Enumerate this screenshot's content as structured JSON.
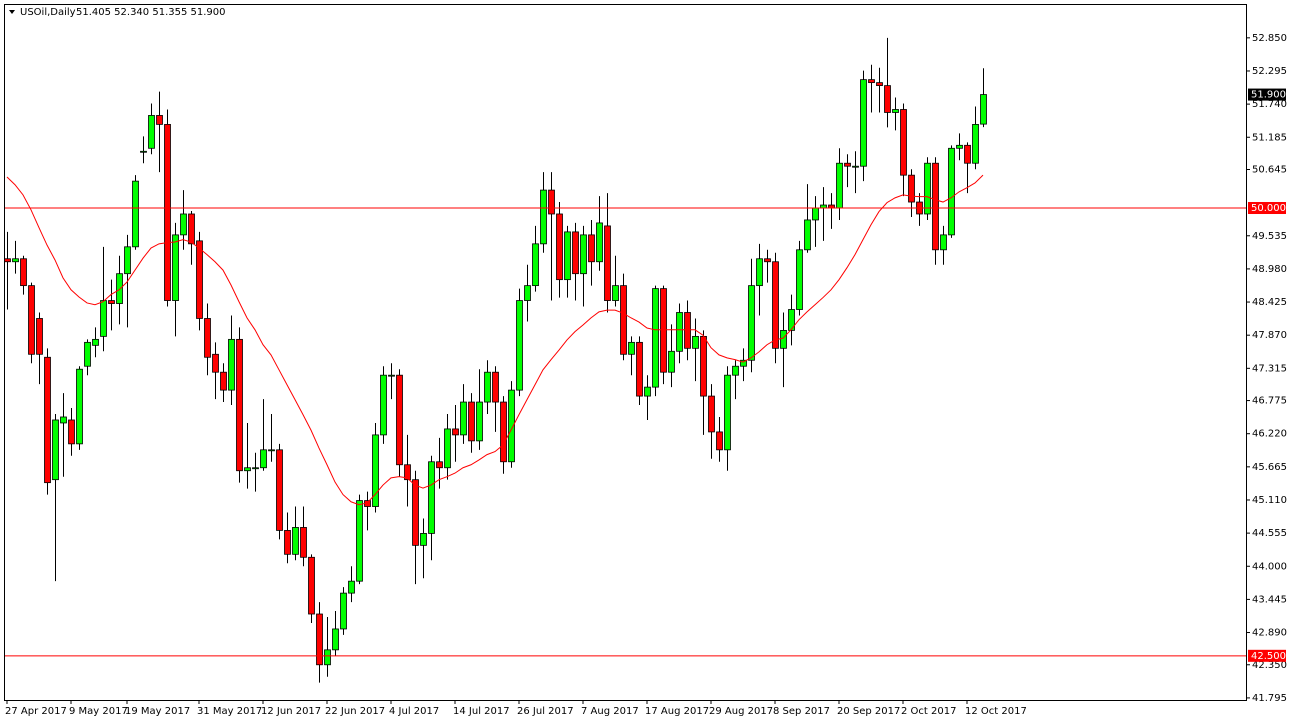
{
  "chart_data": {
    "type": "candlestick",
    "title": "USOil,Daily",
    "quote": "51.405 52.340 51.355 51.900",
    "categories": [
      "27 Apr 2017",
      null,
      null,
      null,
      null,
      null,
      null,
      null,
      "9 May 2017",
      null,
      null,
      null,
      null,
      null,
      null,
      "19 May 2017",
      null,
      null,
      null,
      null,
      null,
      null,
      null,
      null,
      "31 May 2017",
      null,
      null,
      null,
      null,
      null,
      null,
      null,
      "12 Jun 2017",
      null,
      null,
      null,
      null,
      null,
      null,
      null,
      "22 Jun 2017",
      null,
      null,
      null,
      null,
      null,
      null,
      null,
      "4 Jul 2017",
      null,
      null,
      null,
      null,
      null,
      null,
      null,
      "14 Jul 2017",
      null,
      null,
      null,
      null,
      null,
      null,
      null,
      "26 Jul 2017",
      null,
      null,
      null,
      null,
      null,
      null,
      null,
      "7 Aug 2017",
      null,
      null,
      null,
      null,
      null,
      null,
      null,
      "17 Aug 2017",
      null,
      null,
      null,
      null,
      null,
      null,
      null,
      "29 Aug 2017",
      null,
      null,
      null,
      null,
      null,
      null,
      null,
      "8 Sep 2017",
      null,
      null,
      null,
      null,
      null,
      null,
      null,
      "20 Sep 2017",
      null,
      null,
      null,
      null,
      null,
      null,
      null,
      "2 Oct 2017",
      null,
      null,
      null,
      null,
      null,
      null,
      null,
      "12 Oct 2017",
      null,
      null
    ],
    "open": [
      49.15,
      49.1,
      49.15,
      48.7,
      48.15,
      47.5,
      45.45,
      46.4,
      46.45,
      46.05,
      47.35,
      47.7,
      47.85,
      48.45,
      48.4,
      48.9,
      49.35,
      50.95,
      51.0,
      51.55,
      51.4,
      48.45,
      49.55,
      49.9,
      49.45,
      48.15,
      47.55,
      47.25,
      46.95,
      47.8,
      45.6,
      45.65,
      45.65,
      45.95,
      45.95,
      44.6,
      44.2,
      44.65,
      44.15,
      43.2,
      42.35,
      42.6,
      42.95,
      43.55,
      43.75,
      45.1,
      45.0,
      46.2,
      47.2,
      47.2,
      45.7,
      45.45,
      44.35,
      44.55,
      45.75,
      45.65,
      46.3,
      46.2,
      46.75,
      46.1,
      46.75,
      47.25,
      46.75,
      45.75,
      46.95,
      48.45,
      48.7,
      49.4,
      50.3,
      49.9,
      48.8,
      49.6,
      48.9,
      49.55,
      49.1,
      49.7,
      48.45,
      48.7,
      47.55,
      47.75,
      46.85,
      47.0,
      48.65,
      47.25,
      47.6,
      48.25,
      47.65,
      47.85,
      46.85,
      46.25,
      45.95,
      47.2,
      47.35,
      47.45,
      48.7,
      49.15,
      49.1,
      47.65,
      47.95,
      48.3,
      49.3,
      49.8,
      50.0,
      50.05,
      50.0,
      50.75,
      50.7,
      50.7,
      52.15,
      52.1,
      52.05,
      51.6,
      51.65,
      50.55,
      50.1,
      49.9,
      50.75,
      49.3,
      49.55,
      51.0,
      51.05,
      50.75,
      51.405
    ],
    "high": [
      49.6,
      49.45,
      49.2,
      48.75,
      48.25,
      47.65,
      46.55,
      46.9,
      46.65,
      47.35,
      47.8,
      48.0,
      49.35,
      48.8,
      49.2,
      49.55,
      50.55,
      51.2,
      51.75,
      51.95,
      51.65,
      49.75,
      50.3,
      49.95,
      49.6,
      48.4,
      47.75,
      47.4,
      48.2,
      48.0,
      46.4,
      45.9,
      46.8,
      46.55,
      46.05,
      44.9,
      45.0,
      45.0,
      44.2,
      43.4,
      43.15,
      43.25,
      43.65,
      44.0,
      45.2,
      45.25,
      46.4,
      47.35,
      47.4,
      47.3,
      46.2,
      45.6,
      44.8,
      45.85,
      46.15,
      46.55,
      46.7,
      47.05,
      46.9,
      47.3,
      47.45,
      47.35,
      46.85,
      47.1,
      48.65,
      49.05,
      49.7,
      50.6,
      50.6,
      50.1,
      49.7,
      49.75,
      49.7,
      49.8,
      50.2,
      50.25,
      49.2,
      48.9,
      47.85,
      47.85,
      47.2,
      48.7,
      48.7,
      48.05,
      48.4,
      48.45,
      48.15,
      47.95,
      47.05,
      46.5,
      47.35,
      47.45,
      47.65,
      49.15,
      49.4,
      49.3,
      49.25,
      48.25,
      48.55,
      49.45,
      50.4,
      50.2,
      50.35,
      50.25,
      51.0,
      50.9,
      50.95,
      52.3,
      52.4,
      52.35,
      52.85,
      51.85,
      51.75,
      50.65,
      50.25,
      50.85,
      50.85,
      49.7,
      51.05,
      51.25,
      51.1,
      51.7,
      52.34
    ],
    "low": [
      48.3,
      48.9,
      48.55,
      47.4,
      47.05,
      45.2,
      43.75,
      45.5,
      45.85,
      45.95,
      47.2,
      47.5,
      47.6,
      47.95,
      48.05,
      48.0,
      49.3,
      50.75,
      50.9,
      50.6,
      48.35,
      47.85,
      49.3,
      49.05,
      47.95,
      47.2,
      46.8,
      46.75,
      46.7,
      45.4,
      45.3,
      45.25,
      45.6,
      45.75,
      44.45,
      44.05,
      44.1,
      44.0,
      43.05,
      42.05,
      42.15,
      42.5,
      42.85,
      43.4,
      43.7,
      44.6,
      44.9,
      46.05,
      46.8,
      45.5,
      45.0,
      43.7,
      43.8,
      44.1,
      45.3,
      45.45,
      45.75,
      46.05,
      45.9,
      45.95,
      46.55,
      46.25,
      45.55,
      45.65,
      46.85,
      48.1,
      48.6,
      49.25,
      48.45,
      48.5,
      48.5,
      48.45,
      48.35,
      48.7,
      48.95,
      48.25,
      48.35,
      47.45,
      47.2,
      46.7,
      46.45,
      46.85,
      47.05,
      47.0,
      47.4,
      47.45,
      47.1,
      46.2,
      45.8,
      45.75,
      45.6,
      46.8,
      47.1,
      47.25,
      48.2,
      48.75,
      47.4,
      47.0,
      47.7,
      48.2,
      49.25,
      49.35,
      49.45,
      49.65,
      49.8,
      50.35,
      50.25,
      50.45,
      51.6,
      51.6,
      51.35,
      51.3,
      50.2,
      49.85,
      49.7,
      49.8,
      49.05,
      49.05,
      49.5,
      50.8,
      50.25,
      50.65,
      51.355
    ],
    "close": [
      49.1,
      49.15,
      48.7,
      47.55,
      47.55,
      45.4,
      46.45,
      46.5,
      46.05,
      47.3,
      47.75,
      47.8,
      48.45,
      48.4,
      48.9,
      49.35,
      50.45,
      50.95,
      51.55,
      51.4,
      48.45,
      49.55,
      49.9,
      49.4,
      48.15,
      47.5,
      47.25,
      46.95,
      47.8,
      45.6,
      45.65,
      45.65,
      45.95,
      45.95,
      44.6,
      44.2,
      44.65,
      44.15,
      43.2,
      42.35,
      42.6,
      42.95,
      43.55,
      43.75,
      45.1,
      45.0,
      46.2,
      47.2,
      47.2,
      45.7,
      45.45,
      44.35,
      44.55,
      45.75,
      45.65,
      46.3,
      46.2,
      46.75,
      46.1,
      46.75,
      47.25,
      46.75,
      45.75,
      46.95,
      48.45,
      48.7,
      49.4,
      50.3,
      49.9,
      48.8,
      49.6,
      48.9,
      49.55,
      49.1,
      49.75,
      48.45,
      48.7,
      47.55,
      47.75,
      46.85,
      47.0,
      48.65,
      47.25,
      47.6,
      48.25,
      47.65,
      47.85,
      46.85,
      46.25,
      45.95,
      47.2,
      47.35,
      47.45,
      48.7,
      49.15,
      49.1,
      47.65,
      47.95,
      48.3,
      49.3,
      49.8,
      50.0,
      50.05,
      50.0,
      50.75,
      50.7,
      50.7,
      52.15,
      52.1,
      52.05,
      51.6,
      51.65,
      50.55,
      50.1,
      49.9,
      50.75,
      49.3,
      49.55,
      51.0,
      51.05,
      50.75,
      51.4,
      51.9
    ],
    "up_color": "#00ff00",
    "down_color": "#ff0000",
    "series": [
      {
        "color": "#ff0000",
        "values": [
          50.52,
          50.39,
          50.22,
          49.97,
          49.67,
          49.38,
          49.13,
          48.83,
          48.63,
          48.51,
          48.41,
          48.38,
          48.43,
          48.55,
          48.63,
          48.76,
          48.96,
          49.16,
          49.33,
          49.4,
          49.42,
          49.43,
          49.47,
          49.43,
          49.33,
          49.22,
          49.1,
          48.96,
          48.71,
          48.43,
          48.16,
          47.96,
          47.71,
          47.54,
          47.29,
          47.04,
          46.79,
          46.54,
          46.28,
          45.98,
          45.7,
          45.41,
          45.2,
          45.08,
          45.03,
          45.06,
          45.2,
          45.36,
          45.48,
          45.5,
          45.48,
          45.36,
          45.31,
          45.36,
          45.45,
          45.5,
          45.56,
          45.65,
          45.7,
          45.78,
          45.87,
          45.92,
          46.03,
          46.28,
          46.54,
          46.79,
          47.04,
          47.29,
          47.46,
          47.62,
          47.79,
          47.93,
          48.04,
          48.16,
          48.26,
          48.29,
          48.29,
          48.24,
          48.16,
          48.09,
          47.99,
          47.96,
          47.96,
          47.96,
          47.96,
          47.96,
          47.96,
          47.87,
          47.66,
          47.54,
          47.49,
          47.46,
          47.42,
          47.49,
          47.59,
          47.71,
          47.79,
          47.82,
          47.96,
          48.13,
          48.26,
          48.38,
          48.5,
          48.63,
          48.8,
          49.0,
          49.22,
          49.47,
          49.72,
          49.94,
          50.09,
          50.17,
          50.22,
          50.2,
          50.19,
          50.19,
          50.14,
          50.1,
          50.17,
          50.27,
          50.34,
          50.42,
          50.55
        ]
      }
    ],
    "hlines": [
      {
        "value": 50.0,
        "label": "50.000",
        "color": "#ff0000"
      },
      {
        "value": 42.5,
        "label": "42.500",
        "color": "#ff0000"
      }
    ],
    "last_price": {
      "value": 51.9,
      "label": "51.900",
      "color": "#000000"
    },
    "ylim": [
      41.76,
      53.4
    ],
    "yticks": [
      {
        "value": 52.85,
        "label": "52.850"
      },
      {
        "value": 52.295,
        "label": "52.295"
      },
      {
        "value": 51.74,
        "label": "51.740"
      },
      {
        "value": 51.185,
        "label": "51.185"
      },
      {
        "value": 50.645,
        "label": "50.645"
      },
      {
        "value": 49.535,
        "label": "49.535"
      },
      {
        "value": 48.98,
        "label": "48.980"
      },
      {
        "value": 48.425,
        "label": "48.425"
      },
      {
        "value": 47.87,
        "label": "47.870"
      },
      {
        "value": 47.315,
        "label": "47.315"
      },
      {
        "value": 46.775,
        "label": "46.775"
      },
      {
        "value": 46.22,
        "label": "46.220"
      },
      {
        "value": 45.665,
        "label": "45.665"
      },
      {
        "value": 45.11,
        "label": "45.110"
      },
      {
        "value": 44.555,
        "label": "44.555"
      },
      {
        "value": 44.0,
        "label": "44.000"
      },
      {
        "value": 43.445,
        "label": "43.445"
      },
      {
        "value": 42.89,
        "label": "42.890"
      },
      {
        "value": 42.35,
        "label": "42.350"
      },
      {
        "value": 41.795,
        "label": "41.795"
      }
    ]
  }
}
